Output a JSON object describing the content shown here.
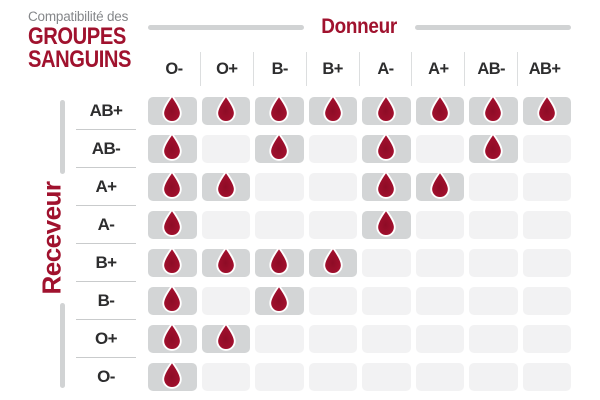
{
  "title": {
    "subtitle": "Compatibilité des",
    "main_line1": "GROUPES",
    "main_line2": "SANGUINS"
  },
  "axes": {
    "donor": "Donneur",
    "receiver": "Receveur"
  },
  "chart_data": {
    "type": "heatmap",
    "title": "Compatibilité des GROUPES SANGUINS",
    "x_axis_label": "Donneur",
    "y_axis_label": "Receveur",
    "columns_donors": [
      "O-",
      "O+",
      "B-",
      "B+",
      "A-",
      "A+",
      "AB-",
      "AB+"
    ],
    "rows_receivers": [
      "AB+",
      "AB-",
      "A+",
      "A-",
      "B+",
      "B-",
      "O+",
      "O-"
    ],
    "compatible_marker": "blood-drop-icon",
    "matrix": [
      [
        1,
        1,
        1,
        1,
        1,
        1,
        1,
        1
      ],
      [
        1,
        0,
        1,
        0,
        1,
        0,
        1,
        0
      ],
      [
        1,
        1,
        0,
        0,
        1,
        1,
        0,
        0
      ],
      [
        1,
        0,
        0,
        0,
        1,
        0,
        0,
        0
      ],
      [
        1,
        1,
        1,
        1,
        0,
        0,
        0,
        0
      ],
      [
        1,
        0,
        1,
        0,
        0,
        0,
        0,
        0
      ],
      [
        1,
        1,
        0,
        0,
        0,
        0,
        0,
        0
      ],
      [
        1,
        0,
        0,
        0,
        0,
        0,
        0,
        0
      ]
    ]
  },
  "colors": {
    "accent_red": "#A0122E",
    "drop_red_inner": "#8E0C26",
    "drop_red_outer": "#B11336",
    "title_gray": "#85878A",
    "label_dark": "#2D2D2E",
    "cell_filled": "#D3D5D6",
    "cell_empty": "#F2F2F3",
    "line_gray": "#D1D3D4",
    "divider_gray": "#C9CBCC"
  }
}
